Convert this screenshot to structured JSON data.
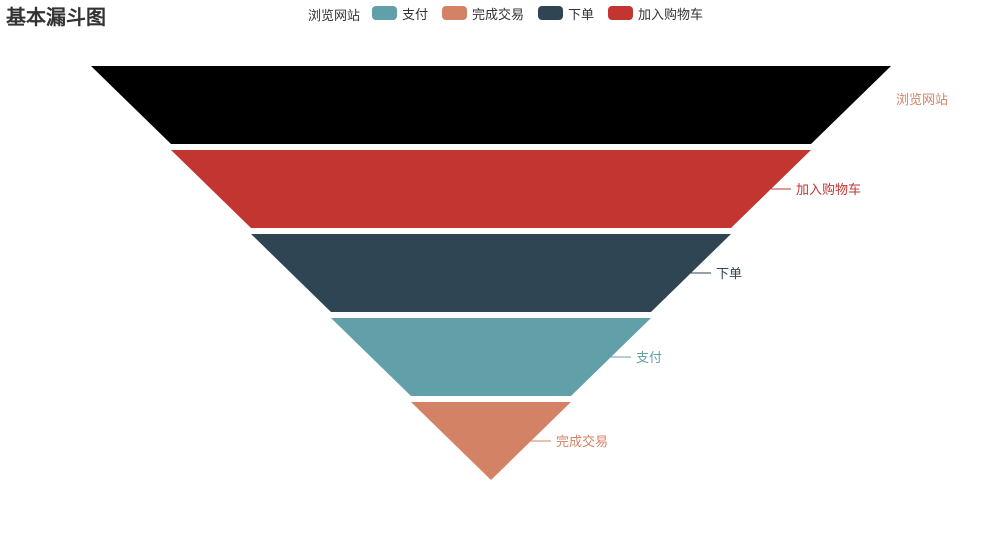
{
  "title": "基本漏斗图",
  "legend": {
    "items": [
      {
        "label": "浏览网站",
        "color": null
      },
      {
        "label": "支付",
        "color": "#61a0a8"
      },
      {
        "label": "完成交易",
        "color": "#d48265"
      },
      {
        "label": "下单",
        "color": "#2f4554"
      },
      {
        "label": "加入购物车",
        "color": "#c23531"
      }
    ]
  },
  "chart_data": {
    "type": "funnel",
    "title": "基本漏斗图",
    "sort": "descending",
    "max": 100,
    "series": [
      {
        "name": "浏览网站",
        "value": 100,
        "color": "#000000",
        "label_color": "#d48265"
      },
      {
        "name": "加入购物车",
        "value": 80,
        "color": "#c23531",
        "label_color": "#c23531"
      },
      {
        "name": "下单",
        "value": 60,
        "color": "#2f4554",
        "label_color": "#2f4554"
      },
      {
        "name": "支付",
        "value": 40,
        "color": "#61a0a8",
        "label_color": "#61a0a8"
      },
      {
        "name": "完成交易",
        "value": 20,
        "color": "#d48265",
        "label_color": "#d48265"
      }
    ]
  }
}
